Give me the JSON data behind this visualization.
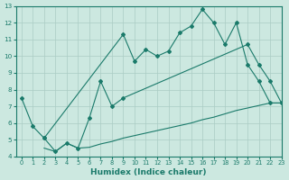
{
  "xlabel": "Humidex (Indice chaleur)",
  "xlim": [
    -0.5,
    23
  ],
  "ylim": [
    4,
    13
  ],
  "xticks": [
    0,
    1,
    2,
    3,
    4,
    5,
    6,
    7,
    8,
    9,
    10,
    11,
    12,
    13,
    14,
    15,
    16,
    17,
    18,
    19,
    20,
    21,
    22,
    23
  ],
  "yticks": [
    4,
    5,
    6,
    7,
    8,
    9,
    10,
    11,
    12,
    13
  ],
  "bg_color": "#cce8e0",
  "grid_color": "#aaccC4",
  "line_color": "#1a7a6a",
  "line1_x": [
    0,
    1,
    2,
    9,
    10,
    11,
    12,
    13,
    14,
    15,
    16,
    17,
    18,
    19,
    20,
    21,
    22,
    23
  ],
  "line1_y": [
    7.5,
    5.8,
    5.1,
    11.3,
    9.7,
    10.4,
    10.0,
    10.3,
    11.4,
    11.8,
    12.8,
    12.0,
    10.7,
    12.0,
    9.5,
    8.5,
    7.2,
    7.2
  ],
  "line2_x": [
    2,
    3,
    4,
    5,
    6,
    7,
    8,
    9,
    20,
    21,
    22,
    23
  ],
  "line2_y": [
    5.1,
    4.3,
    4.8,
    4.5,
    6.3,
    8.5,
    7.0,
    7.5,
    10.7,
    9.5,
    8.5,
    7.2
  ],
  "line3_x": [
    2,
    3,
    4,
    5,
    6,
    7,
    8,
    9,
    10,
    11,
    12,
    13,
    14,
    15,
    16,
    17,
    18,
    19,
    20,
    21,
    22,
    23
  ],
  "line3_y": [
    4.5,
    4.3,
    4.8,
    4.5,
    4.55,
    4.75,
    4.9,
    5.1,
    5.25,
    5.4,
    5.55,
    5.7,
    5.85,
    6.0,
    6.2,
    6.35,
    6.55,
    6.75,
    6.9,
    7.05,
    7.2,
    7.2
  ]
}
